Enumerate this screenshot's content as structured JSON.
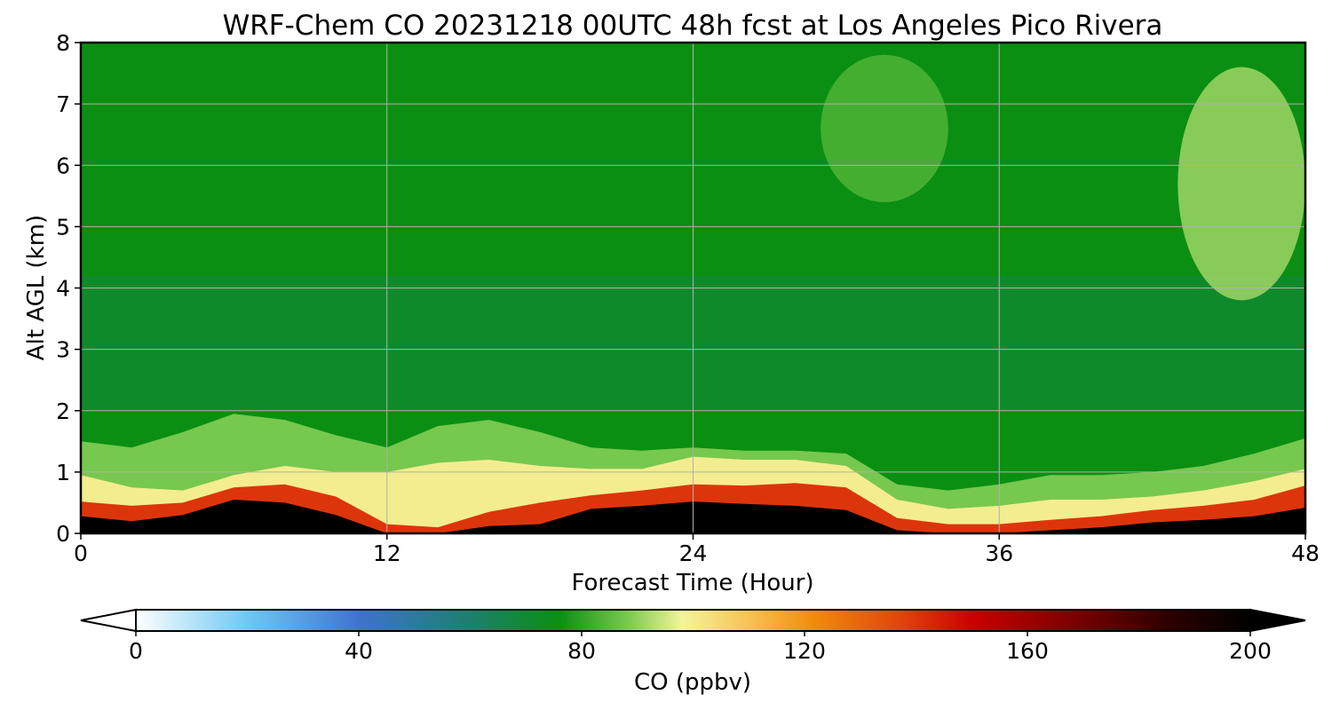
{
  "chart_data": {
    "type": "heatmap",
    "title": "WRF-Chem CO  20231218 00UTC 48h fcst at Los Angeles Pico Rivera",
    "xlabel": "Forecast Time (Hour)",
    "ylabel": "Alt AGL (km)",
    "xlim": [
      0,
      48
    ],
    "ylim": [
      0,
      8
    ],
    "x_ticks": [
      0,
      12,
      24,
      36,
      48
    ],
    "x_tick_labels": [
      "0",
      "12",
      "24",
      "36",
      "48"
    ],
    "y_ticks": [
      0,
      1,
      2,
      3,
      4,
      5,
      6,
      7,
      8
    ],
    "y_tick_labels": [
      "0",
      "1",
      "2",
      "3",
      "4",
      "5",
      "6",
      "7",
      "8"
    ],
    "grid": true,
    "colorbar": {
      "label": "CO  (ppbv)",
      "range": [
        0,
        200
      ],
      "ticks": [
        0,
        40,
        80,
        120,
        160,
        200
      ],
      "tick_labels": [
        "0",
        "40",
        "80",
        "120",
        "160",
        "200"
      ],
      "extend": "both",
      "color_stops": [
        {
          "value": 0,
          "color": "#ffffff"
        },
        {
          "value": 20,
          "color": "#6ec8f4"
        },
        {
          "value": 40,
          "color": "#3f73cf"
        },
        {
          "value": 60,
          "color": "#1e7f6e"
        },
        {
          "value": 76,
          "color": "#0a8f12"
        },
        {
          "value": 88,
          "color": "#77c84e"
        },
        {
          "value": 98,
          "color": "#f3f59a"
        },
        {
          "value": 110,
          "color": "#f7c255"
        },
        {
          "value": 122,
          "color": "#f08a0a"
        },
        {
          "value": 138,
          "color": "#e0400d"
        },
        {
          "value": 150,
          "color": "#cc0000"
        },
        {
          "value": 165,
          "color": "#8a0000"
        },
        {
          "value": 185,
          "color": "#2e0000"
        },
        {
          "value": 200,
          "color": "#000000"
        }
      ]
    },
    "hours": [
      0,
      2,
      4,
      6,
      8,
      10,
      12,
      14,
      16,
      18,
      20,
      22,
      24,
      26,
      28,
      30,
      32,
      34,
      36,
      38,
      40,
      42,
      44,
      46,
      48
    ],
    "boundary_layer": {
      "black_top_km": [
        0.28,
        0.2,
        0.3,
        0.55,
        0.5,
        0.3,
        0.0,
        0.0,
        0.12,
        0.15,
        0.4,
        0.45,
        0.52,
        0.48,
        0.45,
        0.38,
        0.05,
        0.0,
        0.0,
        0.05,
        0.1,
        0.18,
        0.22,
        0.28,
        0.42
      ],
      "red_top_km": [
        0.52,
        0.45,
        0.5,
        0.75,
        0.8,
        0.6,
        0.15,
        0.1,
        0.35,
        0.5,
        0.62,
        0.7,
        0.8,
        0.78,
        0.82,
        0.75,
        0.25,
        0.15,
        0.15,
        0.22,
        0.28,
        0.38,
        0.45,
        0.55,
        0.78
      ],
      "yellow_top_km": [
        0.95,
        0.75,
        0.7,
        0.95,
        1.1,
        1.0,
        1.0,
        1.15,
        1.2,
        1.1,
        1.05,
        1.05,
        1.25,
        1.2,
        1.2,
        1.1,
        0.55,
        0.4,
        0.45,
        0.55,
        0.55,
        0.6,
        0.7,
        0.85,
        1.05
      ],
      "green_top_km": [
        1.5,
        1.4,
        1.65,
        1.95,
        1.85,
        1.6,
        1.4,
        1.75,
        1.85,
        1.65,
        1.4,
        1.35,
        1.4,
        1.35,
        1.35,
        1.3,
        0.8,
        0.7,
        0.8,
        0.95,
        0.95,
        1.0,
        1.1,
        1.3,
        1.55
      ]
    },
    "free_troposphere": {
      "mixing_region_km": [
        2.0,
        4.2
      ],
      "mixing_region_ppbv": 68,
      "background_ppbv": 76,
      "upper_enhancement": [
        {
          "hour_start": 29,
          "hour_end": 34,
          "km_start": 5.4,
          "km_end": 7.8,
          "ppbv": 84
        },
        {
          "hour_start": 43,
          "hour_end": 48,
          "km_start": 3.8,
          "km_end": 7.6,
          "ppbv": 92
        }
      ]
    }
  }
}
